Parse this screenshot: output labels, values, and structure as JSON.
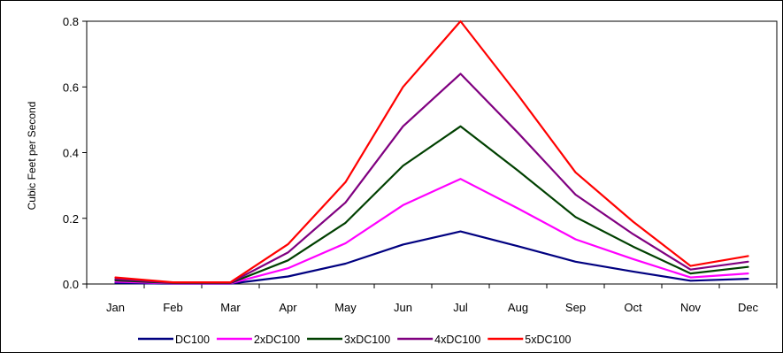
{
  "chart_data": {
    "type": "line",
    "title": "",
    "xlabel": "",
    "ylabel": "Cubic Feet per Second",
    "ylim": [
      0,
      0.8
    ],
    "yticks": [
      "0.0",
      "0.2",
      "0.4",
      "0.6",
      "0.8"
    ],
    "grid": false,
    "legend_position": "bottom",
    "categories": [
      "Jan",
      "Feb",
      "Mar",
      "Apr",
      "May",
      "Jun",
      "Jul",
      "Aug",
      "Sep",
      "Oct",
      "Nov",
      "Dec"
    ],
    "series": [
      {
        "name": "DC100",
        "color": "#000080",
        "values": [
          0.003,
          0.001,
          0.001,
          0.023,
          0.062,
          0.12,
          0.16,
          0.115,
          0.068,
          0.038,
          0.01,
          0.016
        ]
      },
      {
        "name": "2xDC100",
        "color": "#FF00FF",
        "values": [
          0.007,
          0.002,
          0.002,
          0.048,
          0.124,
          0.24,
          0.32,
          0.23,
          0.136,
          0.076,
          0.02,
          0.032
        ]
      },
      {
        "name": "3xDC100",
        "color": "#004000",
        "values": [
          0.011,
          0.003,
          0.003,
          0.072,
          0.186,
          0.36,
          0.48,
          0.345,
          0.204,
          0.114,
          0.032,
          0.052
        ]
      },
      {
        "name": "4xDC100",
        "color": "#800080",
        "values": [
          0.015,
          0.004,
          0.004,
          0.096,
          0.248,
          0.48,
          0.64,
          0.46,
          0.272,
          0.152,
          0.044,
          0.068
        ]
      },
      {
        "name": "5xDC100",
        "color": "#FF0000",
        "values": [
          0.02,
          0.005,
          0.005,
          0.121,
          0.31,
          0.6,
          0.8,
          0.575,
          0.34,
          0.19,
          0.055,
          0.085
        ]
      }
    ]
  }
}
